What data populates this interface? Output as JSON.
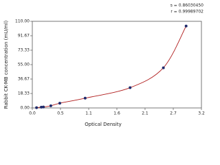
{
  "chart_data": {
    "type": "scatter",
    "x_label": "Optical Density",
    "y_label": "Rabbit CK-MB concentration (mU/ml)",
    "annotations": [
      "s = 0.86030450",
      "r = 0.99989702"
    ],
    "x": [
      0.08,
      0.17,
      0.21,
      0.35,
      0.52,
      1.0,
      1.85,
      2.48,
      2.91
    ],
    "values": [
      0.3,
      1.0,
      1.2,
      2.7,
      6.0,
      12.4,
      25.7,
      51.0,
      104.0
    ],
    "color": "#1f2a6b",
    "line_color": "#b01c1c",
    "xlim": [
      0,
      3.2
    ],
    "xticks": [
      {
        "value": 0,
        "label": "0.0"
      },
      {
        "value": 0.533,
        "label": "0.5"
      },
      {
        "value": 1.067,
        "label": "1.1"
      },
      1.6,
      {
        "value": 2.133,
        "label": "2.1"
      },
      {
        "value": 2.667,
        "label": "2.7"
      },
      3.2
    ],
    "ylim": [
      0,
      110
    ],
    "yticks": [
      {
        "value": 0,
        "label": "0.00"
      },
      18.33,
      36.67,
      {
        "value": 55,
        "label": "55.00"
      },
      73.33,
      91.67,
      {
        "value": 110,
        "label": "110.00"
      }
    ]
  }
}
